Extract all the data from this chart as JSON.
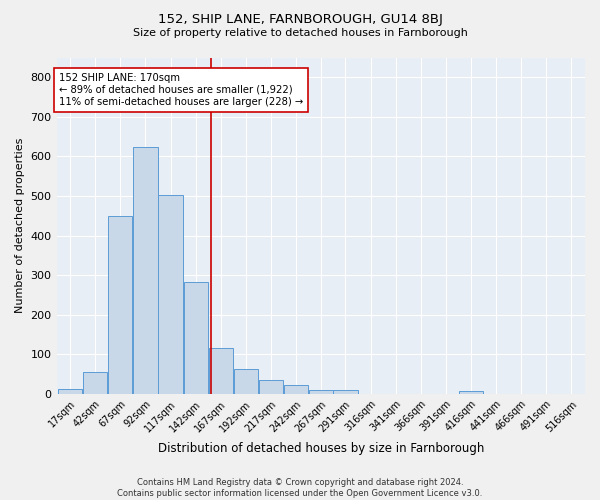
{
  "title1": "152, SHIP LANE, FARNBOROUGH, GU14 8BJ",
  "title2": "Size of property relative to detached houses in Farnborough",
  "xlabel": "Distribution of detached houses by size in Farnborough",
  "ylabel": "Number of detached properties",
  "bar_color": "#c8d8e8",
  "bar_edge_color": "#5b9bd5",
  "bins": [
    17,
    42,
    67,
    92,
    117,
    142,
    167,
    192,
    217,
    242,
    267,
    291,
    316,
    341,
    366,
    391,
    416,
    441,
    466,
    491,
    516
  ],
  "values": [
    12,
    55,
    450,
    625,
    503,
    283,
    117,
    63,
    35,
    22,
    10,
    9,
    0,
    0,
    0,
    0,
    8,
    0,
    0,
    0,
    0
  ],
  "property_size": 170,
  "vline_color": "#cc0000",
  "annotation_line1": "152 SHIP LANE: 170sqm",
  "annotation_line2": "← 89% of detached houses are smaller (1,922)",
  "annotation_line3": "11% of semi-detached houses are larger (228) →",
  "annotation_box_color": "#ffffff",
  "annotation_box_edge": "#cc0000",
  "footer1": "Contains HM Land Registry data © Crown copyright and database right 2024.",
  "footer2": "Contains public sector information licensed under the Open Government Licence v3.0.",
  "bg_color": "#e8eef5",
  "fig_bg_color": "#f0f0f0",
  "ylim": [
    0,
    850
  ],
  "yticks": [
    0,
    100,
    200,
    300,
    400,
    500,
    600,
    700,
    800
  ],
  "bin_width": 25
}
